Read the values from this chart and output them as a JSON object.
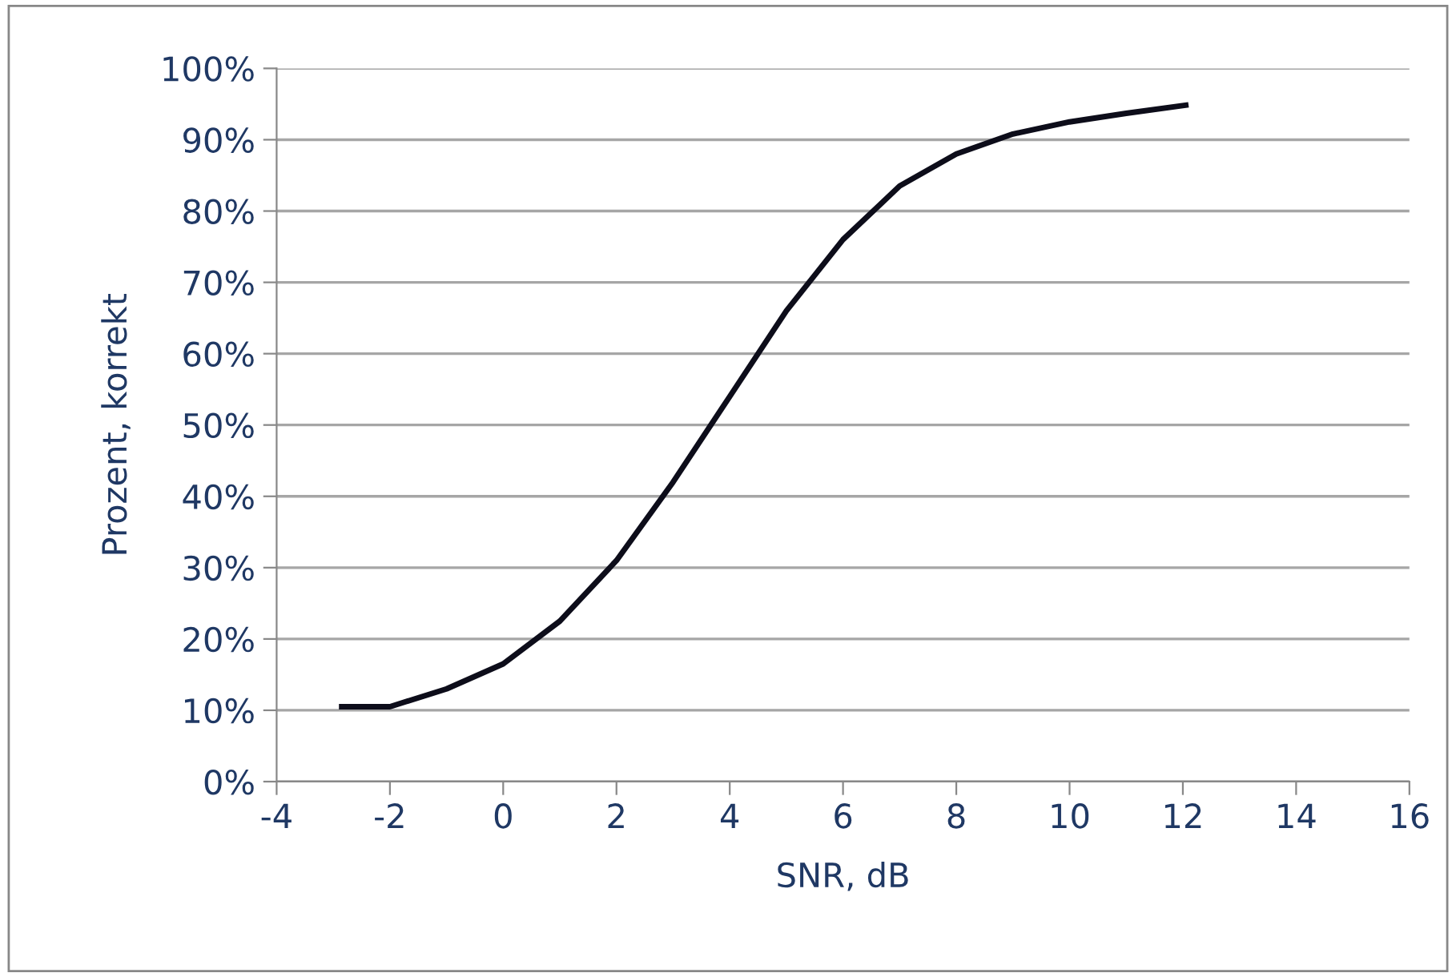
{
  "chart_data": {
    "type": "line",
    "xlabel": "SNR, dB",
    "ylabel": "Prozent, korrekt",
    "x": [
      -2.9,
      -2,
      -1,
      0,
      1,
      2,
      3,
      4,
      5,
      6,
      7,
      8,
      9,
      10,
      11,
      12.1
    ],
    "series": [
      {
        "color": "#0d0d1a",
        "values": [
          10.5,
          10.5,
          13,
          16.5,
          22.5,
          31,
          42,
          54,
          66,
          76,
          83.5,
          88,
          90.8,
          92.5,
          93.7,
          94.9
        ]
      }
    ],
    "xlim": [
      -4,
      16
    ],
    "xticks": [
      -4,
      -2,
      0,
      2,
      4,
      6,
      8,
      10,
      12,
      14,
      16
    ],
    "ylim": [
      0,
      100
    ],
    "yticks": [
      {
        "value": 0,
        "label": "0%"
      },
      {
        "value": 10,
        "label": "10%"
      },
      {
        "value": 20,
        "label": "20%"
      },
      {
        "value": 30,
        "label": "30%"
      },
      {
        "value": 40,
        "label": "40%"
      },
      {
        "value": 50,
        "label": "50%"
      },
      {
        "value": 60,
        "label": "60%"
      },
      {
        "value": 70,
        "label": "70%"
      },
      {
        "value": 80,
        "label": "80%"
      },
      {
        "value": 90,
        "label": "90%"
      },
      {
        "value": 100,
        "label": "100%"
      }
    ],
    "grid": "y",
    "marker": "none",
    "line_style": "solid"
  }
}
